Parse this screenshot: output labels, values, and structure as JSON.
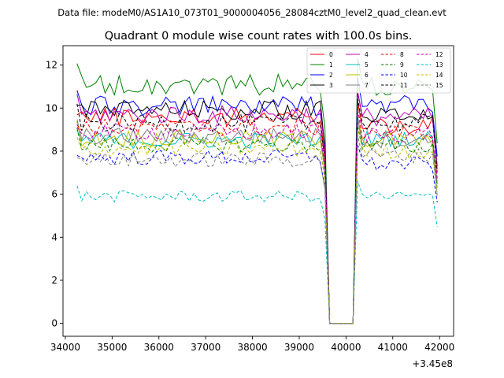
{
  "chart_data": {
    "type": "line",
    "suptitle": "Data file: modeM0/AS1A10_073T01_9000004056_28084cztM0_level2_quad_clean.evt",
    "title": "Quadrant 0 module wise count rates with 100.0s bins.",
    "xlabel": "",
    "ylabel": "",
    "x_offset_label": "+3.45e8",
    "xlim": [
      33950,
      42300
    ],
    "ylim": [
      -0.6,
      12.9
    ],
    "x_ticks": [
      34000,
      35000,
      36000,
      37000,
      38000,
      39000,
      40000,
      41000,
      42000
    ],
    "x_tick_labels": [
      "34000",
      "35000",
      "36000",
      "37000",
      "38000",
      "39000",
      "40000",
      "41000",
      "42000"
    ],
    "y_ticks": [
      0,
      2,
      4,
      6,
      8,
      10,
      12
    ],
    "y_tick_labels": [
      "0",
      "2",
      "4",
      "6",
      "8",
      "10",
      "12"
    ],
    "legend_position": "top-right",
    "x_bins": {
      "first_segment": {
        "start": 34250,
        "end": 39550,
        "step": 100
      },
      "gap_points": [
        39650,
        40150
      ],
      "second_segment": {
        "start": 40250,
        "end": 41950,
        "step": 100
      }
    },
    "series": [
      {
        "name": "0",
        "color": "#ff0000",
        "dash": "solid",
        "level_a": 9.6,
        "level_b": 9.2
      },
      {
        "name": "1",
        "color": "#008000",
        "dash": "solid",
        "level_a": 11.1,
        "level_b": 11.0
      },
      {
        "name": "2",
        "color": "#0000ff",
        "dash": "solid",
        "level_a": 10.1,
        "level_b": 10.2
      },
      {
        "name": "3",
        "color": "#000000",
        "dash": "solid",
        "level_a": 9.9,
        "level_b": 9.6
      },
      {
        "name": "4",
        "color": "#bf00bf",
        "dash": "solid",
        "level_a": 9.7,
        "level_b": 9.6
      },
      {
        "name": "5",
        "color": "#00bfbf",
        "dash": "solid",
        "level_a": 8.5,
        "level_b": 8.6
      },
      {
        "name": "6",
        "color": "#bfbf00",
        "dash": "solid",
        "level_a": 8.6,
        "level_b": 8.5
      },
      {
        "name": "7",
        "color": "#808080",
        "dash": "solid",
        "level_a": 8.7,
        "level_b": 8.5
      },
      {
        "name": "8",
        "color": "#ff0000",
        "dash": "dashed",
        "level_a": 9.1,
        "level_b": 8.9
      },
      {
        "name": "9",
        "color": "#008000",
        "dash": "dashed",
        "level_a": 8.3,
        "level_b": 8.2
      },
      {
        "name": "10",
        "color": "#0000ff",
        "dash": "dashed",
        "level_a": 7.7,
        "level_b": 7.4
      },
      {
        "name": "11",
        "color": "#000000",
        "dash": "dashed",
        "level_a": 9.3,
        "level_b": 9.3
      },
      {
        "name": "12",
        "color": "#bf00bf",
        "dash": "dashed",
        "level_a": 8.9,
        "level_b": 8.8
      },
      {
        "name": "13",
        "color": "#00bfbf",
        "dash": "dashed",
        "level_a": 5.9,
        "level_b": 5.9
      },
      {
        "name": "14",
        "color": "#bfbf00",
        "dash": "dashed",
        "level_a": 8.1,
        "level_b": 8.0
      },
      {
        "name": "15",
        "color": "#808080",
        "dash": "dashed",
        "level_a": 7.6,
        "level_b": 7.8
      }
    ],
    "gap_value": 0
  }
}
